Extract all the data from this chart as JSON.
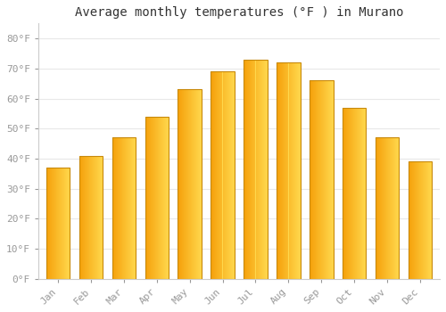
{
  "title": "Average monthly temperatures (°F ) in Murano",
  "categories": [
    "Jan",
    "Feb",
    "Mar",
    "Apr",
    "May",
    "Jun",
    "Jul",
    "Aug",
    "Sep",
    "Oct",
    "Nov",
    "Dec"
  ],
  "values": [
    37,
    41,
    47,
    54,
    63,
    69,
    73,
    72,
    66,
    57,
    47,
    39
  ],
  "bar_color_left": "#F5A00A",
  "bar_color_right": "#FFD84D",
  "bar_edge_color": "#C8890A",
  "background_color": "#FFFFFF",
  "plot_bg_color": "#FFFFFF",
  "grid_color": "#E8E8E8",
  "ytick_labels": [
    "0°F",
    "10°F",
    "20°F",
    "30°F",
    "40°F",
    "50°F",
    "60°F",
    "70°F",
    "80°F"
  ],
  "ytick_values": [
    0,
    10,
    20,
    30,
    40,
    50,
    60,
    70,
    80
  ],
  "ylim": [
    0,
    85
  ],
  "title_fontsize": 10,
  "tick_fontsize": 8,
  "tick_color": "#999999",
  "axis_color": "#CCCCCC",
  "bar_width": 0.72
}
